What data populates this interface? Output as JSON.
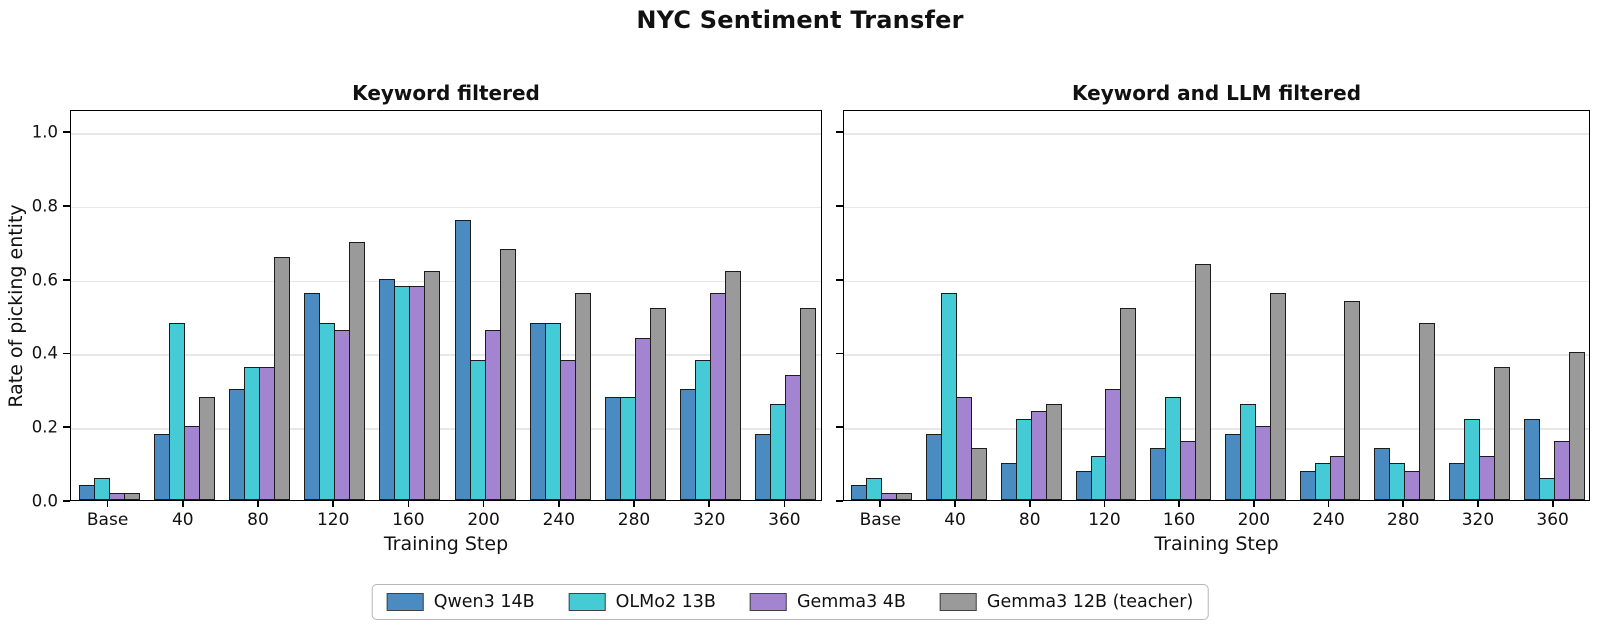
{
  "title": "NYC Sentiment Transfer",
  "colors": {
    "qwen3_14b": "#4a8bc2",
    "olmo2_13b": "#45cbd5",
    "gemma3_4b": "#a284d0",
    "gemma3_12b_teacher": "#9a9a9a",
    "bar_edge": "#1c1c1c",
    "grid": "#e8e8e8",
    "spine": "#000000"
  },
  "chart_data": [
    {
      "type": "bar",
      "title": "Keyword filtered",
      "xlabel": "Training Step",
      "ylabel": "Rate of picking entity",
      "ylim": [
        0,
        1.06
      ],
      "yticks": [
        "0.0",
        "0.2",
        "0.4",
        "0.6",
        "0.8",
        "1.0"
      ],
      "grid": "horizontal",
      "legend_position": "bottom-center",
      "categories": [
        "Base",
        "40",
        "80",
        "120",
        "160",
        "200",
        "240",
        "280",
        "320",
        "360"
      ],
      "series": [
        {
          "name": "Qwen3 14B",
          "color": "#4a8bc2",
          "values": [
            0.04,
            0.18,
            0.3,
            0.56,
            0.6,
            0.76,
            0.48,
            0.28,
            0.3,
            0.18
          ]
        },
        {
          "name": "OLMo2 13B",
          "color": "#45cbd5",
          "values": [
            0.06,
            0.48,
            0.36,
            0.48,
            0.58,
            0.38,
            0.48,
            0.28,
            0.38,
            0.26
          ]
        },
        {
          "name": "Gemma3 4B",
          "color": "#a284d0",
          "values": [
            0.02,
            0.2,
            0.36,
            0.46,
            0.58,
            0.46,
            0.38,
            0.44,
            0.56,
            0.34
          ]
        },
        {
          "name": "Gemma3 12B (teacher)",
          "color": "#9a9a9a",
          "values": [
            0.02,
            0.28,
            0.66,
            0.7,
            0.62,
            0.68,
            0.56,
            0.52,
            0.62,
            0.52
          ]
        }
      ]
    },
    {
      "type": "bar",
      "title": "Keyword and LLM filtered",
      "xlabel": "Training Step",
      "ylabel": "",
      "ylim": [
        0,
        1.06
      ],
      "yticks": [
        "0.0",
        "0.2",
        "0.4",
        "0.6",
        "0.8",
        "1.0"
      ],
      "ytick_labels_visible": false,
      "grid": "horizontal",
      "categories": [
        "Base",
        "40",
        "80",
        "120",
        "160",
        "200",
        "240",
        "280",
        "320",
        "360"
      ],
      "series": [
        {
          "name": "Qwen3 14B",
          "color": "#4a8bc2",
          "values": [
            0.04,
            0.18,
            0.1,
            0.08,
            0.14,
            0.18,
            0.08,
            0.14,
            0.1,
            0.22
          ]
        },
        {
          "name": "OLMo2 13B",
          "color": "#45cbd5",
          "values": [
            0.06,
            0.56,
            0.22,
            0.12,
            0.28,
            0.26,
            0.1,
            0.1,
            0.22,
            0.06
          ]
        },
        {
          "name": "Gemma3 4B",
          "color": "#a284d0",
          "values": [
            0.02,
            0.28,
            0.24,
            0.3,
            0.16,
            0.2,
            0.12,
            0.08,
            0.12,
            0.16
          ]
        },
        {
          "name": "Gemma3 12B (teacher)",
          "color": "#9a9a9a",
          "values": [
            0.02,
            0.14,
            0.26,
            0.52,
            0.64,
            0.56,
            0.54,
            0.48,
            0.36,
            0.4
          ]
        }
      ]
    }
  ],
  "legend": {
    "entries": [
      {
        "label": "Qwen3 14B",
        "color": "#4a8bc2"
      },
      {
        "label": "OLMo2 13B",
        "color": "#45cbd5"
      },
      {
        "label": "Gemma3 4B",
        "color": "#a284d0"
      },
      {
        "label": "Gemma3 12B (teacher)",
        "color": "#9a9a9a"
      }
    ]
  }
}
